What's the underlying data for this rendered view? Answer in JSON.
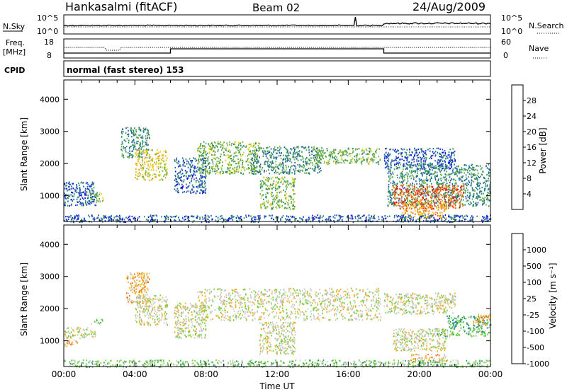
{
  "header": {
    "station": "Hankasalmi (fitACF)",
    "beam": "Beam 02",
    "date": "24/Aug/2009"
  },
  "noise_panel": {
    "left_label": "N.Sky",
    "left_ticks": [
      "10^5",
      "10^0"
    ],
    "right_ticks": [
      "10^5",
      "10^0"
    ],
    "right_label": "N.Search"
  },
  "freq_panel": {
    "left_label_top": "Freq.",
    "left_label_bottom": "[MHz]",
    "left_ticks": [
      "18",
      "8"
    ],
    "right_ticks": [
      "60",
      "0"
    ],
    "right_label": "Nave"
  },
  "cpid_panel": {
    "label": "CPID",
    "mode_text": "normal (fast stereo) 153"
  },
  "colors": {
    "frame": "#000000",
    "scatter_ground": "#c8c8c0",
    "background": "#ffffff"
  },
  "chart_data": [
    {
      "type": "heatmap",
      "panel": "power",
      "ylabel": "Slant Range [km]",
      "yticks": [
        1000,
        2000,
        3000,
        4000
      ],
      "ylim": [
        200,
        4600
      ],
      "xlim_hours": [
        0,
        24
      ],
      "colorbar": {
        "label": "Power [dB]",
        "tick_labels": [
          "4",
          "8",
          "12",
          "16",
          "20",
          "24",
          "28"
        ],
        "colors": [
          "#1010e8",
          "#2058b0",
          "#2f8f66",
          "#6ab04a",
          "#e8d020",
          "#f0a018",
          "#e85c10",
          "#e01010"
        ]
      },
      "regions": [
        {
          "x": [
            0.0,
            1.8
          ],
          "y": [
            700,
            1450
          ],
          "level": 1
        },
        {
          "x": [
            1.3,
            2.2
          ],
          "y": [
            820,
            1150
          ],
          "level": 3
        },
        {
          "x": [
            3.2,
            4.8
          ],
          "y": [
            2200,
            3150
          ],
          "level": 2
        },
        {
          "x": [
            4.0,
            5.8
          ],
          "y": [
            1500,
            2450
          ],
          "level": 4
        },
        {
          "x": [
            6.2,
            8.0
          ],
          "y": [
            1100,
            2200
          ],
          "level": 1
        },
        {
          "x": [
            7.5,
            11.0
          ],
          "y": [
            1700,
            2700
          ],
          "level": 3
        },
        {
          "x": [
            10.5,
            14.5
          ],
          "y": [
            1700,
            2550
          ],
          "level": 2
        },
        {
          "x": [
            11.0,
            13.0
          ],
          "y": [
            600,
            1600
          ],
          "level": 3
        },
        {
          "x": [
            14.0,
            17.8
          ],
          "y": [
            2000,
            2500
          ],
          "level": 3
        },
        {
          "x": [
            18.0,
            22.0
          ],
          "y": [
            1850,
            2500
          ],
          "level": 1
        },
        {
          "x": [
            18.2,
            24.0
          ],
          "y": [
            700,
            2000
          ],
          "level": 2
        },
        {
          "x": [
            18.5,
            22.5
          ],
          "y": [
            600,
            1350
          ],
          "level": 6
        },
        {
          "x": [
            19.0,
            21.5
          ],
          "y": [
            300,
            800
          ],
          "level": 5
        },
        {
          "x": [
            0.0,
            24.0
          ],
          "y": [
            200,
            420
          ],
          "level": 1
        }
      ]
    },
    {
      "type": "heatmap",
      "panel": "velocity",
      "ylabel": "Slant Range [km]",
      "yticks": [
        1000,
        2000,
        3000,
        4000
      ],
      "ylim": [
        200,
        4600
      ],
      "xlim_hours": [
        0,
        24
      ],
      "colorbar": {
        "label": "Velocity [m s⁻¹]",
        "tick_labels": [
          "1000",
          "500",
          "100",
          "25",
          "-25",
          "-100",
          "-500",
          "-1000"
        ],
        "colors": [
          "#1030c0",
          "#2f7fbf",
          "#2f9f5f",
          "#6fcf3f",
          "#c8c8c0",
          "#f0b020",
          "#f07010",
          "#e01010"
        ]
      },
      "xticks": [
        "00:00",
        "04:00",
        "08:00",
        "12:00",
        "16:00",
        "20:00",
        "00:00"
      ],
      "xlabel": "Time UT",
      "regions": [
        {
          "x": [
            0.0,
            1.8
          ],
          "y": [
            1100,
            1450
          ],
          "level": 4
        },
        {
          "x": [
            0.0,
            0.8
          ],
          "y": [
            850,
            1050
          ],
          "level": 5
        },
        {
          "x": [
            1.5,
            2.2
          ],
          "y": [
            1550,
            1700
          ],
          "level": 3
        },
        {
          "x": [
            3.5,
            4.8
          ],
          "y": [
            2200,
            3150
          ],
          "level": 5
        },
        {
          "x": [
            4.0,
            5.8
          ],
          "y": [
            1500,
            2450
          ],
          "level": 4
        },
        {
          "x": [
            6.2,
            8.0
          ],
          "y": [
            1100,
            2200
          ],
          "level": 4
        },
        {
          "x": [
            7.5,
            17.8
          ],
          "y": [
            1650,
            2650
          ],
          "level": 4
        },
        {
          "x": [
            11.0,
            13.0
          ],
          "y": [
            600,
            1600
          ],
          "level": 4
        },
        {
          "x": [
            18.0,
            22.0
          ],
          "y": [
            1850,
            2500
          ],
          "level": 4
        },
        {
          "x": [
            18.5,
            21.5
          ],
          "y": [
            700,
            1400
          ],
          "level": 4
        },
        {
          "x": [
            21.0,
            24.0
          ],
          "y": [
            1150,
            1400
          ],
          "level": 3
        },
        {
          "x": [
            21.5,
            24.0
          ],
          "y": [
            1400,
            1800
          ],
          "level": 2
        },
        {
          "x": [
            23.0,
            24.0
          ],
          "y": [
            1500,
            1850
          ],
          "level": 5
        },
        {
          "x": [
            19.5,
            21.5
          ],
          "y": [
            350,
            600
          ],
          "level": 5
        },
        {
          "x": [
            0.0,
            24.0
          ],
          "y": [
            200,
            420
          ],
          "level": 3
        }
      ]
    }
  ]
}
